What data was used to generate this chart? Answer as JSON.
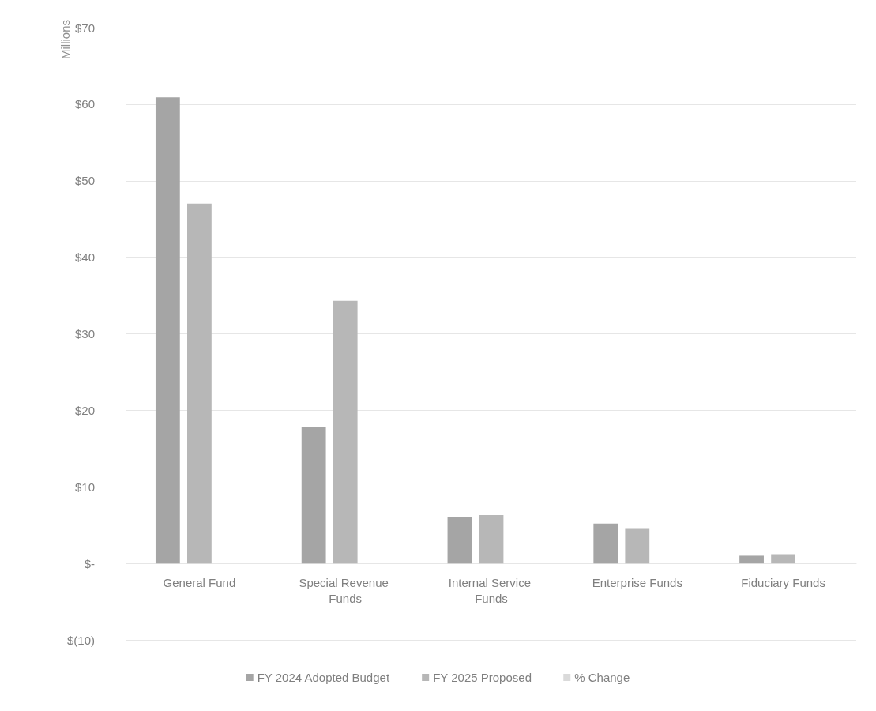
{
  "chart_data": {
    "type": "bar",
    "ylabel": "Millions",
    "categories": [
      "General Fund",
      "Special Revenue Funds",
      "Internal Service Funds",
      "Enterprise Funds",
      "Fiduciary Funds"
    ],
    "series": [
      {
        "name": "FY 2024 Adopted Budget",
        "color": "#a5a5a5",
        "values": [
          60.9,
          17.8,
          6.1,
          5.2,
          1.0
        ]
      },
      {
        "name": "FY 2025 Proposed",
        "color": "#b7b7b7",
        "values": [
          47.0,
          34.3,
          6.3,
          4.6,
          1.2
        ]
      },
      {
        "name": "% Change",
        "color": "#dadada",
        "values": [
          null,
          null,
          null,
          null,
          null
        ]
      }
    ],
    "ylim": [
      -10,
      70
    ],
    "yticks": [
      {
        "value": -10,
        "label": "$(10)"
      },
      {
        "value": 0,
        "label": "$-"
      },
      {
        "value": 10,
        "label": "$10"
      },
      {
        "value": 20,
        "label": "$20"
      },
      {
        "value": 30,
        "label": "$30"
      },
      {
        "value": 40,
        "label": "$40"
      },
      {
        "value": 50,
        "label": "$50"
      },
      {
        "value": 60,
        "label": "$60"
      },
      {
        "value": 70,
        "label": "$70"
      }
    ],
    "grid": "y",
    "legend": "bottom"
  }
}
